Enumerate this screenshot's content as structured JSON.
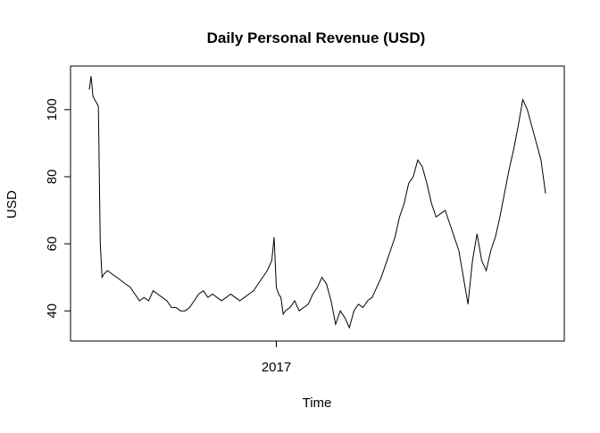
{
  "chart_data": {
    "type": "line",
    "title": "Daily Personal Revenue (USD)",
    "xlabel": "Time",
    "ylabel": "USD",
    "x_ticks": [
      {
        "label": "2017",
        "value": 0.41
      }
    ],
    "y_ticks": [
      40,
      60,
      80,
      100
    ],
    "xlim": [
      0,
      1
    ],
    "ylim": [
      31,
      113
    ],
    "grid": false,
    "legend": "none",
    "line_color": "#000000",
    "series": [
      {
        "x": [
          0,
          0.004,
          0.008,
          0.012,
          0.016,
          0.02,
          0.024,
          0.028,
          0.032,
          0.04,
          0.05,
          0.06,
          0.07,
          0.08,
          0.09,
          0.1,
          0.11,
          0.12,
          0.13,
          0.14,
          0.15,
          0.16,
          0.17,
          0.18,
          0.19,
          0.2,
          0.21,
          0.22,
          0.23,
          0.24,
          0.25,
          0.26,
          0.27,
          0.28,
          0.29,
          0.3,
          0.31,
          0.32,
          0.33,
          0.34,
          0.35,
          0.36,
          0.37,
          0.38,
          0.39,
          0.4,
          0.405,
          0.41,
          0.415,
          0.42,
          0.425,
          0.43,
          0.44,
          0.45,
          0.46,
          0.47,
          0.48,
          0.49,
          0.5,
          0.51,
          0.52,
          0.53,
          0.54,
          0.55,
          0.56,
          0.57,
          0.58,
          0.585,
          0.59,
          0.6,
          0.61,
          0.62,
          0.63,
          0.64,
          0.65,
          0.66,
          0.67,
          0.68,
          0.69,
          0.7,
          0.71,
          0.72,
          0.73,
          0.74,
          0.75,
          0.76,
          0.77,
          0.78,
          0.79,
          0.8,
          0.81,
          0.82,
          0.83,
          0.84,
          0.85,
          0.86,
          0.87,
          0.88,
          0.89,
          0.9,
          0.91,
          0.92,
          0.93,
          0.94,
          0.95,
          0.96,
          0.97,
          0.98,
          0.99,
          1.0
        ],
        "y": [
          106,
          110,
          104,
          103,
          102,
          101,
          60,
          50,
          51,
          52,
          51,
          50,
          49,
          48,
          47,
          45,
          43,
          44,
          43,
          46,
          45,
          44,
          43,
          41,
          41,
          40,
          40,
          41,
          43,
          45,
          46,
          44,
          45,
          44,
          43,
          44,
          45,
          44,
          43,
          44,
          45,
          46,
          48,
          50,
          52,
          55,
          62,
          47,
          45,
          44,
          39,
          40,
          41,
          43,
          40,
          41,
          42,
          45,
          47,
          50,
          48,
          43,
          36,
          40,
          38,
          35,
          40,
          41,
          42,
          41,
          43,
          44,
          47,
          50,
          54,
          58,
          62,
          68,
          72,
          78,
          80,
          85,
          83,
          78,
          72,
          68,
          69,
          70,
          66,
          62,
          58,
          50,
          42,
          55,
          63,
          55,
          52,
          58,
          62,
          68,
          75,
          82,
          88,
          95,
          103,
          100,
          95,
          90,
          85,
          75
        ]
      }
    ]
  }
}
